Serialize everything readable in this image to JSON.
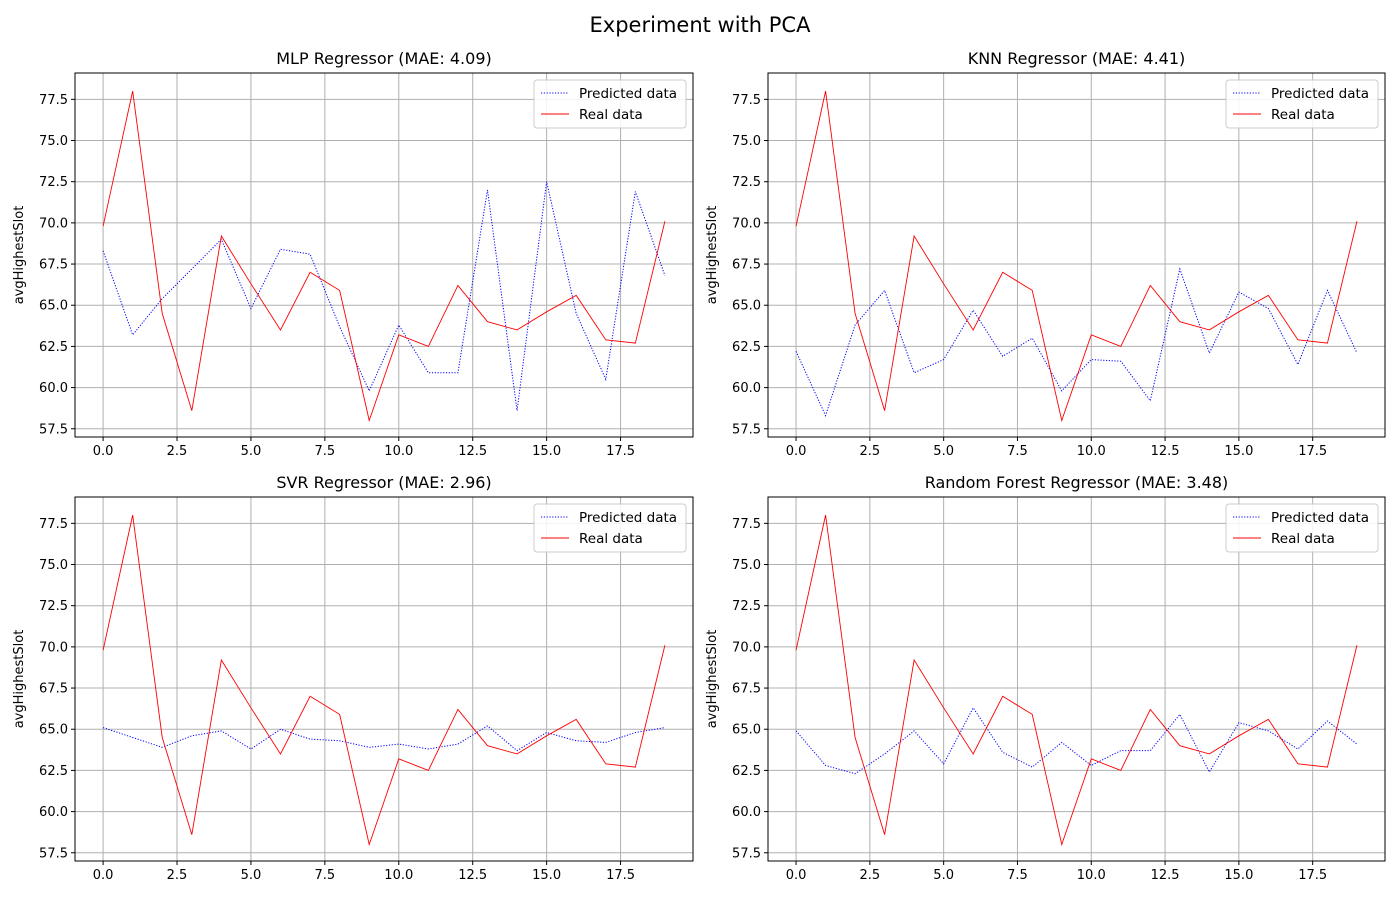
{
  "figure": {
    "title": "Experiment with PCA",
    "colors": {
      "predicted": "#0000ff",
      "real": "#ff0000",
      "grid": "#b0b0b0"
    }
  },
  "chart_data": [
    {
      "type": "line",
      "title": "MLP Regressor (MAE: 4.09)",
      "xlabel": "",
      "ylabel": "avgHighestSlot",
      "xlim": [
        -0.95,
        19.95
      ],
      "ylim": [
        57.0,
        79.1
      ],
      "xticks": [
        "0.0",
        "2.5",
        "5.0",
        "7.5",
        "10.0",
        "12.5",
        "15.0",
        "17.5"
      ],
      "yticks": [
        "57.5",
        "60.0",
        "62.5",
        "65.0",
        "67.5",
        "70.0",
        "72.5",
        "75.0",
        "77.5"
      ],
      "grid": true,
      "legend_position": "top-right",
      "x": [
        0,
        1,
        2,
        3,
        4,
        5,
        6,
        7,
        8,
        9,
        10,
        11,
        12,
        13,
        14,
        15,
        16,
        17,
        18,
        19
      ],
      "series": [
        {
          "name": "Predicted data",
          "style": "dotted",
          "color": "#0000ff",
          "values": [
            68.3,
            63.2,
            65.4,
            67.2,
            69.0,
            64.8,
            68.4,
            68.1,
            63.7,
            59.8,
            63.8,
            60.9,
            60.9,
            72.0,
            58.6,
            72.5,
            64.5,
            60.5,
            71.9,
            66.8
          ]
        },
        {
          "name": "Real data",
          "style": "solid",
          "color": "#ff0000",
          "values": [
            69.8,
            78.0,
            64.5,
            58.6,
            69.2,
            66.3,
            63.5,
            67.0,
            65.9,
            58.0,
            63.2,
            62.5,
            66.2,
            64.0,
            63.5,
            64.6,
            65.6,
            62.9,
            62.7,
            70.1
          ]
        }
      ]
    },
    {
      "type": "line",
      "title": "KNN Regressor (MAE: 4.41)",
      "xlabel": "",
      "ylabel": "avgHighestSlot",
      "xlim": [
        -0.95,
        19.95
      ],
      "ylim": [
        57.0,
        79.1
      ],
      "xticks": [
        "0.0",
        "2.5",
        "5.0",
        "7.5",
        "10.0",
        "12.5",
        "15.0",
        "17.5"
      ],
      "yticks": [
        "57.5",
        "60.0",
        "62.5",
        "65.0",
        "67.5",
        "70.0",
        "72.5",
        "75.0",
        "77.5"
      ],
      "grid": true,
      "legend_position": "top-right",
      "x": [
        0,
        1,
        2,
        3,
        4,
        5,
        6,
        7,
        8,
        9,
        10,
        11,
        12,
        13,
        14,
        15,
        16,
        17,
        18,
        19
      ],
      "series": [
        {
          "name": "Predicted data",
          "style": "dotted",
          "color": "#0000ff",
          "values": [
            62.2,
            58.3,
            63.8,
            65.9,
            60.9,
            61.7,
            64.7,
            61.9,
            63.0,
            59.8,
            61.7,
            61.6,
            59.2,
            67.2,
            62.1,
            65.8,
            64.8,
            61.4,
            65.9,
            62.1
          ]
        },
        {
          "name": "Real data",
          "style": "solid",
          "color": "#ff0000",
          "values": [
            69.8,
            78.0,
            64.5,
            58.6,
            69.2,
            66.3,
            63.5,
            67.0,
            65.9,
            58.0,
            63.2,
            62.5,
            66.2,
            64.0,
            63.5,
            64.6,
            65.6,
            62.9,
            62.7,
            70.1
          ]
        }
      ]
    },
    {
      "type": "line",
      "title": "SVR Regressor (MAE: 2.96)",
      "xlabel": "",
      "ylabel": "avgHighestSlot",
      "xlim": [
        -0.95,
        19.95
      ],
      "ylim": [
        57.0,
        79.1
      ],
      "xticks": [
        "0.0",
        "2.5",
        "5.0",
        "7.5",
        "10.0",
        "12.5",
        "15.0",
        "17.5"
      ],
      "yticks": [
        "57.5",
        "60.0",
        "62.5",
        "65.0",
        "67.5",
        "70.0",
        "72.5",
        "75.0",
        "77.5"
      ],
      "grid": true,
      "legend_position": "top-right",
      "x": [
        0,
        1,
        2,
        3,
        4,
        5,
        6,
        7,
        8,
        9,
        10,
        11,
        12,
        13,
        14,
        15,
        16,
        17,
        18,
        19
      ],
      "series": [
        {
          "name": "Predicted data",
          "style": "dotted",
          "color": "#0000ff",
          "values": [
            65.1,
            64.5,
            63.9,
            64.6,
            64.9,
            63.8,
            65.0,
            64.4,
            64.3,
            63.9,
            64.1,
            63.8,
            64.1,
            65.2,
            63.7,
            64.8,
            64.3,
            64.2,
            64.8,
            65.1
          ]
        },
        {
          "name": "Real data",
          "style": "solid",
          "color": "#ff0000",
          "values": [
            69.8,
            78.0,
            64.5,
            58.6,
            69.2,
            66.3,
            63.5,
            67.0,
            65.9,
            58.0,
            63.2,
            62.5,
            66.2,
            64.0,
            63.5,
            64.6,
            65.6,
            62.9,
            62.7,
            70.1
          ]
        }
      ]
    },
    {
      "type": "line",
      "title": "Random Forest Regressor (MAE: 3.48)",
      "xlabel": "",
      "ylabel": "avgHighestSlot",
      "xlim": [
        -0.95,
        19.95
      ],
      "ylim": [
        57.0,
        79.1
      ],
      "xticks": [
        "0.0",
        "2.5",
        "5.0",
        "7.5",
        "10.0",
        "12.5",
        "15.0",
        "17.5"
      ],
      "yticks": [
        "57.5",
        "60.0",
        "62.5",
        "65.0",
        "67.5",
        "70.0",
        "72.5",
        "75.0",
        "77.5"
      ],
      "grid": true,
      "legend_position": "top-right",
      "x": [
        0,
        1,
        2,
        3,
        4,
        5,
        6,
        7,
        8,
        9,
        10,
        11,
        12,
        13,
        14,
        15,
        16,
        17,
        18,
        19
      ],
      "series": [
        {
          "name": "Predicted data",
          "style": "dotted",
          "color": "#0000ff",
          "values": [
            64.9,
            62.8,
            62.3,
            63.5,
            64.9,
            62.9,
            66.3,
            63.6,
            62.7,
            64.2,
            62.8,
            63.7,
            63.7,
            65.9,
            62.4,
            65.4,
            64.9,
            63.8,
            65.5,
            64.1
          ]
        },
        {
          "name": "Real data",
          "style": "solid",
          "color": "#ff0000",
          "values": [
            69.8,
            78.0,
            64.5,
            58.6,
            69.2,
            66.3,
            63.5,
            67.0,
            65.9,
            58.0,
            63.2,
            62.5,
            66.2,
            64.0,
            63.5,
            64.6,
            65.6,
            62.9,
            62.7,
            70.1
          ]
        }
      ]
    }
  ]
}
